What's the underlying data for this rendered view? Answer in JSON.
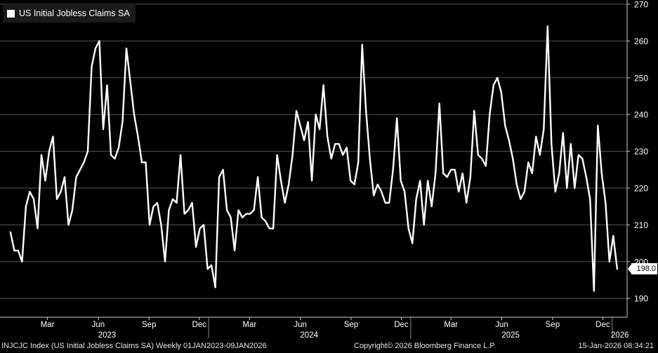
{
  "chart_data": {
    "type": "line",
    "title": "US Initial Jobless Claims SA",
    "series": [
      {
        "name": "US Initial Jobless Claims SA",
        "color": "#ffffff",
        "x": [
          "2023-01-07",
          "2023-01-14",
          "2023-01-21",
          "2023-01-28",
          "2023-02-04",
          "2023-02-11",
          "2023-02-18",
          "2023-02-25",
          "2023-03-04",
          "2023-03-11",
          "2023-03-18",
          "2023-03-25",
          "2023-04-01",
          "2023-04-08",
          "2023-04-15",
          "2023-04-22",
          "2023-04-29",
          "2023-05-06",
          "2023-05-13",
          "2023-05-20",
          "2023-05-27",
          "2023-06-03",
          "2023-06-10",
          "2023-06-17",
          "2023-06-24",
          "2023-07-01",
          "2023-07-08",
          "2023-07-15",
          "2023-07-22",
          "2023-07-29",
          "2023-08-05",
          "2023-08-12",
          "2023-08-19",
          "2023-08-26",
          "2023-09-02",
          "2023-09-09",
          "2023-09-16",
          "2023-09-23",
          "2023-09-30",
          "2023-10-07",
          "2023-10-14",
          "2023-10-21",
          "2023-10-28",
          "2023-11-04",
          "2023-11-11",
          "2023-11-18",
          "2023-11-25",
          "2023-12-02",
          "2023-12-09",
          "2023-12-16",
          "2023-12-23",
          "2023-12-30",
          "2024-01-06",
          "2024-01-13",
          "2024-01-20",
          "2024-01-27",
          "2024-02-03",
          "2024-02-10",
          "2024-02-17",
          "2024-02-24",
          "2024-03-02",
          "2024-03-09",
          "2024-03-16",
          "2024-03-23",
          "2024-03-30",
          "2024-04-06",
          "2024-04-13",
          "2024-04-20",
          "2024-04-27",
          "2024-05-04",
          "2024-05-11",
          "2024-05-18",
          "2024-05-25",
          "2024-06-01",
          "2024-06-08",
          "2024-06-15",
          "2024-06-22",
          "2024-06-29",
          "2024-07-06",
          "2024-07-13",
          "2024-07-20",
          "2024-07-27",
          "2024-08-03",
          "2024-08-10",
          "2024-08-17",
          "2024-08-24",
          "2024-08-31",
          "2024-09-07",
          "2024-09-14",
          "2024-09-21",
          "2024-09-28",
          "2024-10-05",
          "2024-10-12",
          "2024-10-19",
          "2024-10-26",
          "2024-11-02",
          "2024-11-09",
          "2024-11-16",
          "2024-11-23",
          "2024-11-30",
          "2024-12-07",
          "2024-12-14",
          "2024-12-21",
          "2024-12-28",
          "2025-01-04",
          "2025-01-11",
          "2025-01-18",
          "2025-01-25",
          "2025-02-01",
          "2025-02-08",
          "2025-02-15",
          "2025-02-22",
          "2025-03-01",
          "2025-03-08",
          "2025-03-15",
          "2025-03-22",
          "2025-03-29",
          "2025-04-05",
          "2025-04-12",
          "2025-04-19",
          "2025-04-26",
          "2025-05-03",
          "2025-05-10",
          "2025-05-17",
          "2025-05-24",
          "2025-05-31",
          "2025-06-07",
          "2025-06-14",
          "2025-06-21",
          "2025-06-28",
          "2025-07-05",
          "2025-07-12",
          "2025-07-19",
          "2025-07-26",
          "2025-08-02",
          "2025-08-09",
          "2025-08-16",
          "2025-08-23",
          "2025-08-30",
          "2025-09-06",
          "2025-09-13",
          "2025-09-20",
          "2025-09-27",
          "2025-10-04",
          "2025-10-11",
          "2025-10-18",
          "2025-10-25",
          "2025-11-01",
          "2025-11-08",
          "2025-11-15",
          "2025-11-22",
          "2025-11-29",
          "2025-12-06",
          "2025-12-13",
          "2025-12-20",
          "2025-12-27",
          "2026-01-03",
          "2026-01-10"
        ],
        "values": [
          208,
          203,
          203,
          200,
          215,
          219,
          217,
          209,
          229,
          222,
          230,
          234,
          217,
          219,
          223,
          210,
          214,
          223,
          225,
          227,
          230,
          253,
          258,
          260,
          236,
          248,
          229,
          228,
          231,
          238,
          258,
          249,
          240,
          234,
          227,
          227,
          210,
          215,
          216,
          210,
          200,
          214,
          217,
          216,
          229,
          213,
          214,
          216,
          204,
          209,
          210,
          198,
          199,
          193,
          223,
          225,
          214,
          212,
          203,
          214,
          212,
          213,
          213,
          214,
          223,
          212,
          211,
          209,
          209,
          229,
          222,
          216,
          221,
          229,
          241,
          237,
          233,
          238,
          222,
          240,
          236,
          248,
          234,
          228,
          232,
          232,
          229,
          231,
          222,
          221,
          227,
          259,
          241,
          228,
          218,
          221,
          219,
          216,
          216,
          225,
          239,
          222,
          219,
          209,
          205,
          217,
          222,
          210,
          222,
          215,
          224,
          243,
          224,
          223,
          225,
          225,
          219,
          224,
          216,
          223,
          241,
          229,
          228,
          226,
          240,
          248,
          250,
          246,
          237,
          233,
          228,
          221,
          217,
          219,
          227,
          224,
          234,
          229,
          236,
          264,
          232,
          219,
          224,
          235,
          220,
          232,
          220,
          229,
          228,
          223,
          217,
          192,
          237,
          224,
          216,
          200,
          207,
          198
        ]
      }
    ],
    "last_value_label": "198.0",
    "ylim": [
      186,
      271
    ],
    "y_ticks": [
      190,
      200,
      210,
      220,
      230,
      240,
      250,
      260,
      270
    ],
    "y_axis_side": "right",
    "x_ticks": [
      {
        "label": "Mar",
        "date": "2023-03-15"
      },
      {
        "label": "Jun",
        "date": "2023-06-15"
      },
      {
        "label": "Sep",
        "date": "2023-09-15"
      },
      {
        "label": "Dec",
        "date": "2023-12-15"
      },
      {
        "label": "Mar",
        "date": "2024-03-15"
      },
      {
        "label": "Jun",
        "date": "2024-06-15"
      },
      {
        "label": "Sep",
        "date": "2024-09-15"
      },
      {
        "label": "Dec",
        "date": "2024-12-15"
      },
      {
        "label": "Mar",
        "date": "2025-03-15"
      },
      {
        "label": "Jun",
        "date": "2025-06-15"
      },
      {
        "label": "Sep",
        "date": "2025-09-15"
      },
      {
        "label": "Dec",
        "date": "2025-12-15"
      }
    ],
    "year_labels": [
      {
        "label": "2023",
        "date": "2023-07-01"
      },
      {
        "label": "2024",
        "date": "2024-07-01"
      },
      {
        "label": "2025",
        "date": "2025-07-01"
      },
      {
        "label": "2026",
        "date": "2026-01-15"
      }
    ],
    "year_boundaries": [
      "2024-01-01",
      "2025-01-01",
      "2026-01-01"
    ],
    "grid": true,
    "legend": "top-left",
    "background": "#000000",
    "grid_color": "#555555"
  },
  "footer": {
    "left": "INJCJC Index (US Initial Jobless Claims SA) Weekly 01JAN2023-09JAN2026",
    "center": "Copyright© 2026 Bloomberg Finance L.P.",
    "right": "15-Jan-2026 08:34:21"
  }
}
